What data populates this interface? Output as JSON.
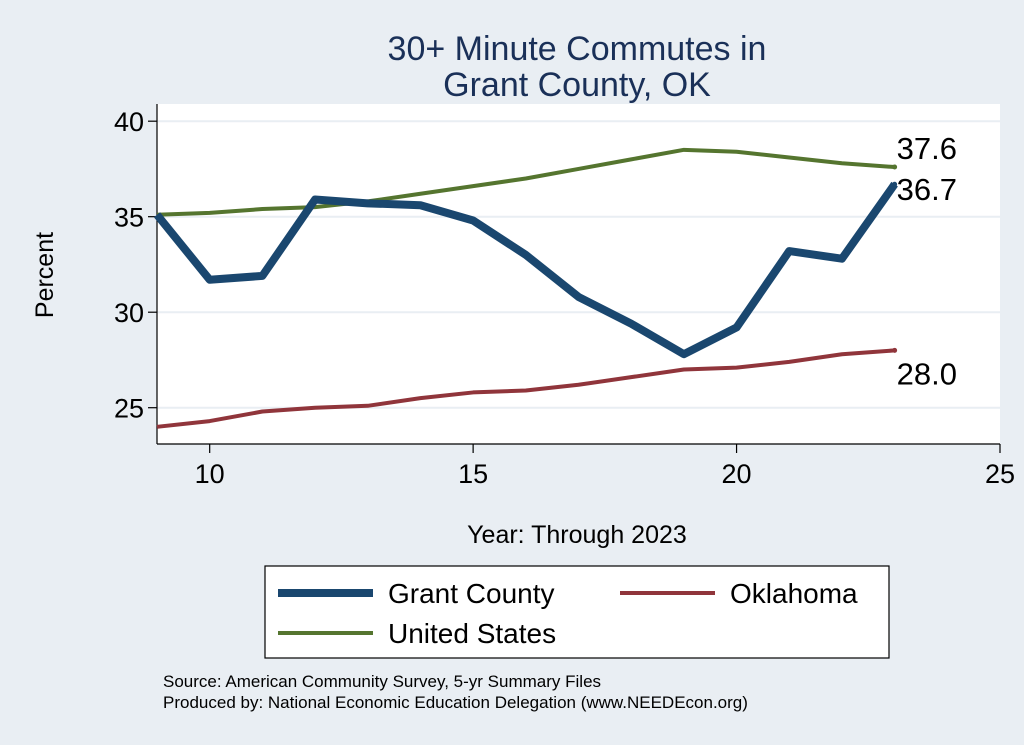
{
  "chart_data": {
    "type": "line",
    "title": [
      "30+ Minute Commutes in",
      "Grant County, OK"
    ],
    "xlabel": "Year: Through 2023",
    "ylabel": "Percent",
    "xlim": [
      9,
      25
    ],
    "ylim": [
      23.1,
      40.9
    ],
    "xticks": [
      10,
      15,
      20,
      25
    ],
    "yticks": [
      25,
      30,
      35,
      40
    ],
    "grid": true,
    "legend_position": "bottom",
    "x": [
      9,
      10,
      11,
      12,
      13,
      14,
      15,
      16,
      17,
      18,
      19,
      20,
      21,
      22,
      23
    ],
    "series": [
      {
        "name": "Grant County",
        "color": "#1a476f",
        "values": [
          35.1,
          31.7,
          31.9,
          35.9,
          35.7,
          35.6,
          34.8,
          33.0,
          30.8,
          29.4,
          27.8,
          29.2,
          33.2,
          32.8,
          36.7
        ],
        "end_label": "36.7"
      },
      {
        "name": "Oklahoma",
        "color": "#90353b",
        "values": [
          24.0,
          24.3,
          24.8,
          25.0,
          25.1,
          25.5,
          25.8,
          25.9,
          26.2,
          26.6,
          27.0,
          27.1,
          27.4,
          27.8,
          28.0
        ],
        "end_label": "28.0"
      },
      {
        "name": "United States",
        "color": "#55752f",
        "values": [
          35.1,
          35.2,
          35.4,
          35.5,
          35.8,
          36.2,
          36.6,
          37.0,
          37.5,
          38.0,
          38.5,
          38.4,
          38.1,
          37.8,
          37.6
        ],
        "end_label": "37.6"
      }
    ]
  },
  "source": {
    "line1": "Source: American Community Survey, 5-yr Summary Files",
    "line2": "Produced by: National Economic Education Delegation (www.NEEDEcon.org)"
  }
}
